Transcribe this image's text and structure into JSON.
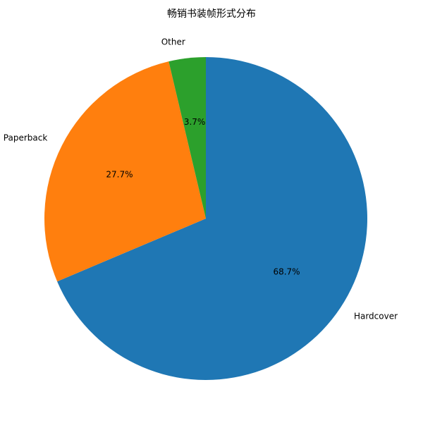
{
  "chart_data": {
    "type": "pie",
    "title": "畅销书装帧形式分布",
    "categories": [
      "Hardcover",
      "Paperback",
      "Other"
    ],
    "values": [
      68.7,
      27.7,
      3.7
    ],
    "percent_labels": [
      "68.7%",
      "27.7%",
      "3.7%"
    ],
    "colors": [
      "#1f77b4",
      "#ff7f0e",
      "#2ca02c"
    ],
    "start_angle_deg": 90,
    "direction": "clockwise",
    "legend": "none"
  }
}
